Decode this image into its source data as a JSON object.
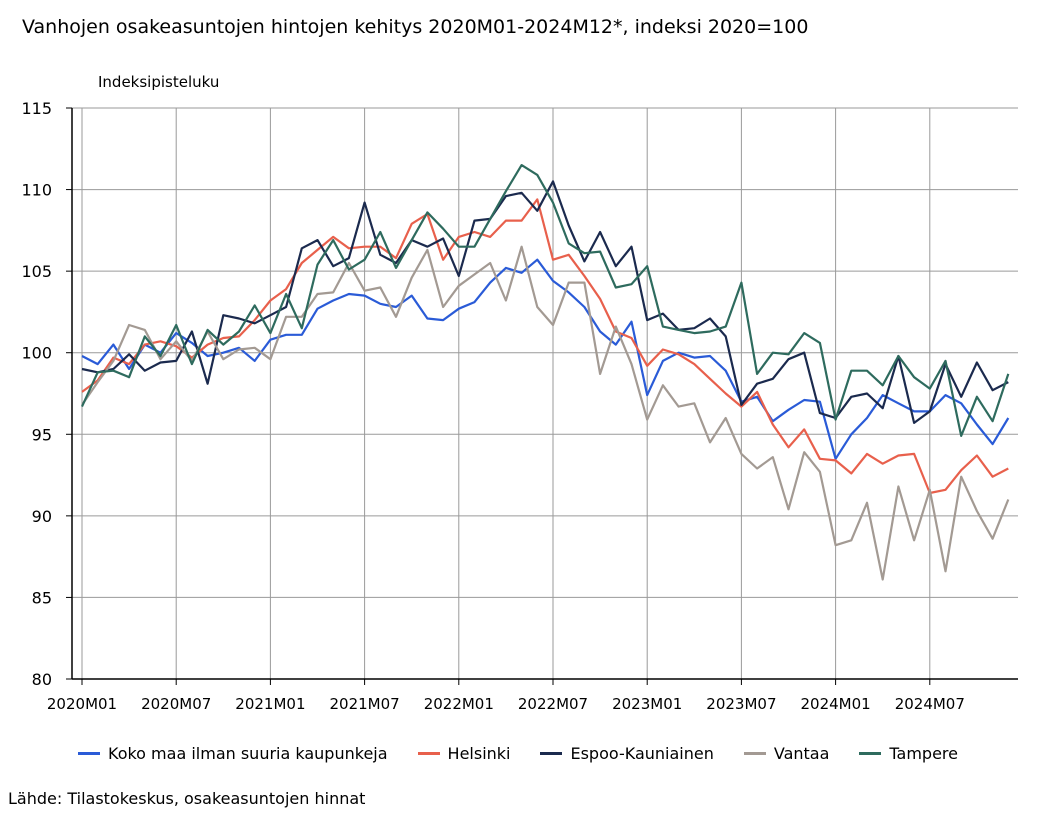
{
  "title": "Vanhojen osakeasuntojen hintojen kehitys 2020M01-2024M12*, indeksi 2020=100",
  "source": "Lähde: Tilastokeskus, osakeasuntojen hinnat",
  "chart_data": {
    "type": "line",
    "ylabel": "Indeksipisteluku",
    "ylim": [
      80,
      115
    ],
    "yticks": [
      80,
      85,
      90,
      95,
      100,
      105,
      110,
      115
    ],
    "x_start": "2020M01",
    "x_end": "2024M12",
    "xtick_labels": [
      "2020M01",
      "2020M07",
      "2021M01",
      "2021M07",
      "2022M01",
      "2022M07",
      "2023M01",
      "2023M07",
      "2024M01",
      "2024M07"
    ],
    "grid": true,
    "legend_position": "bottom",
    "series": [
      {
        "name": "Koko maa ilman suuria kaupunkeja",
        "color": "#2a5bd7",
        "values": [
          99.8,
          99.3,
          100.5,
          99.0,
          100.5,
          100.0,
          101.2,
          100.6,
          99.8,
          100.0,
          100.3,
          99.5,
          100.8,
          101.1,
          101.1,
          102.7,
          103.2,
          103.6,
          103.5,
          103.0,
          102.8,
          103.5,
          102.1,
          102.0,
          102.7,
          103.1,
          104.3,
          105.2,
          104.9,
          105.7,
          104.4,
          103.7,
          102.8,
          101.3,
          100.5,
          101.9,
          97.4,
          99.5,
          100.0,
          99.7,
          99.8,
          98.9,
          97.0,
          97.3,
          95.8,
          96.5,
          97.1,
          97.0,
          93.5,
          95.0,
          96.0,
          97.4,
          96.9,
          96.4,
          96.4,
          97.4,
          96.9,
          95.6,
          94.4,
          96.0
        ]
      },
      {
        "name": "Helsinki",
        "color": "#e8604c",
        "values": [
          97.6,
          98.3,
          99.7,
          99.3,
          100.5,
          100.7,
          100.4,
          99.7,
          100.5,
          100.9,
          101.0,
          102.0,
          103.2,
          103.9,
          105.5,
          106.3,
          107.1,
          106.4,
          106.5,
          106.5,
          105.8,
          107.9,
          108.5,
          105.7,
          107.1,
          107.4,
          107.1,
          108.1,
          108.1,
          109.4,
          105.7,
          106.0,
          104.7,
          103.3,
          101.3,
          100.9,
          99.2,
          100.2,
          99.9,
          99.3,
          98.4,
          97.5,
          96.7,
          97.6,
          95.6,
          94.2,
          95.3,
          93.5,
          93.4,
          92.6,
          93.8,
          93.2,
          93.7,
          93.8,
          91.4,
          91.6,
          92.8,
          93.7,
          92.4,
          92.9
        ]
      },
      {
        "name": "Espoo-Kauniainen",
        "color": "#1b2a4e",
        "values": [
          99.0,
          98.8,
          99.0,
          99.9,
          98.9,
          99.4,
          99.5,
          101.3,
          98.1,
          102.3,
          102.1,
          101.8,
          102.3,
          102.8,
          106.4,
          106.9,
          105.3,
          105.8,
          109.2,
          106.0,
          105.5,
          106.9,
          106.5,
          107.0,
          104.7,
          108.1,
          108.2,
          109.6,
          109.8,
          108.7,
          110.5,
          107.8,
          105.6,
          107.4,
          105.3,
          106.5,
          102.0,
          102.4,
          101.4,
          101.5,
          102.1,
          101.0,
          96.8,
          98.1,
          98.4,
          99.6,
          100.0,
          96.3,
          96.0,
          97.3,
          97.5,
          96.6,
          99.8,
          95.7,
          96.4,
          99.3,
          97.3,
          99.4,
          97.7,
          98.2
        ]
      },
      {
        "name": "Vantaa",
        "color": "#a39a93",
        "values": [
          96.8,
          98.2,
          99.5,
          101.7,
          101.4,
          99.6,
          100.7,
          99.5,
          101.3,
          99.6,
          100.2,
          100.3,
          99.6,
          102.2,
          102.2,
          103.6,
          103.7,
          105.5,
          103.8,
          104.0,
          102.2,
          104.6,
          106.3,
          102.8,
          104.1,
          104.8,
          105.5,
          103.2,
          106.5,
          102.8,
          101.7,
          104.3,
          104.3,
          98.7,
          101.6,
          99.3,
          95.9,
          98.0,
          96.7,
          96.9,
          94.5,
          96.0,
          93.8,
          92.9,
          93.6,
          90.4,
          93.9,
          92.7,
          88.2,
          88.5,
          90.8,
          86.1,
          91.8,
          88.5,
          91.6,
          86.6,
          92.4,
          90.3,
          88.6,
          91.0
        ]
      },
      {
        "name": "Tampere",
        "color": "#2e6b5e",
        "values": [
          96.7,
          98.8,
          98.9,
          98.5,
          101.0,
          99.8,
          101.7,
          99.3,
          101.4,
          100.5,
          101.3,
          102.9,
          101.2,
          103.6,
          101.5,
          105.4,
          106.9,
          105.1,
          105.7,
          107.4,
          105.2,
          106.9,
          108.6,
          107.6,
          106.5,
          106.5,
          108.2,
          109.9,
          111.5,
          110.9,
          109.2,
          106.7,
          106.1,
          106.2,
          104.0,
          104.2,
          105.3,
          101.6,
          101.4,
          101.2,
          101.3,
          101.6,
          104.3,
          98.7,
          100.0,
          99.9,
          101.2,
          100.6,
          95.9,
          98.9,
          98.9,
          98.0,
          99.8,
          98.5,
          97.8,
          99.5,
          94.9,
          97.3,
          95.8,
          98.7
        ]
      }
    ]
  }
}
